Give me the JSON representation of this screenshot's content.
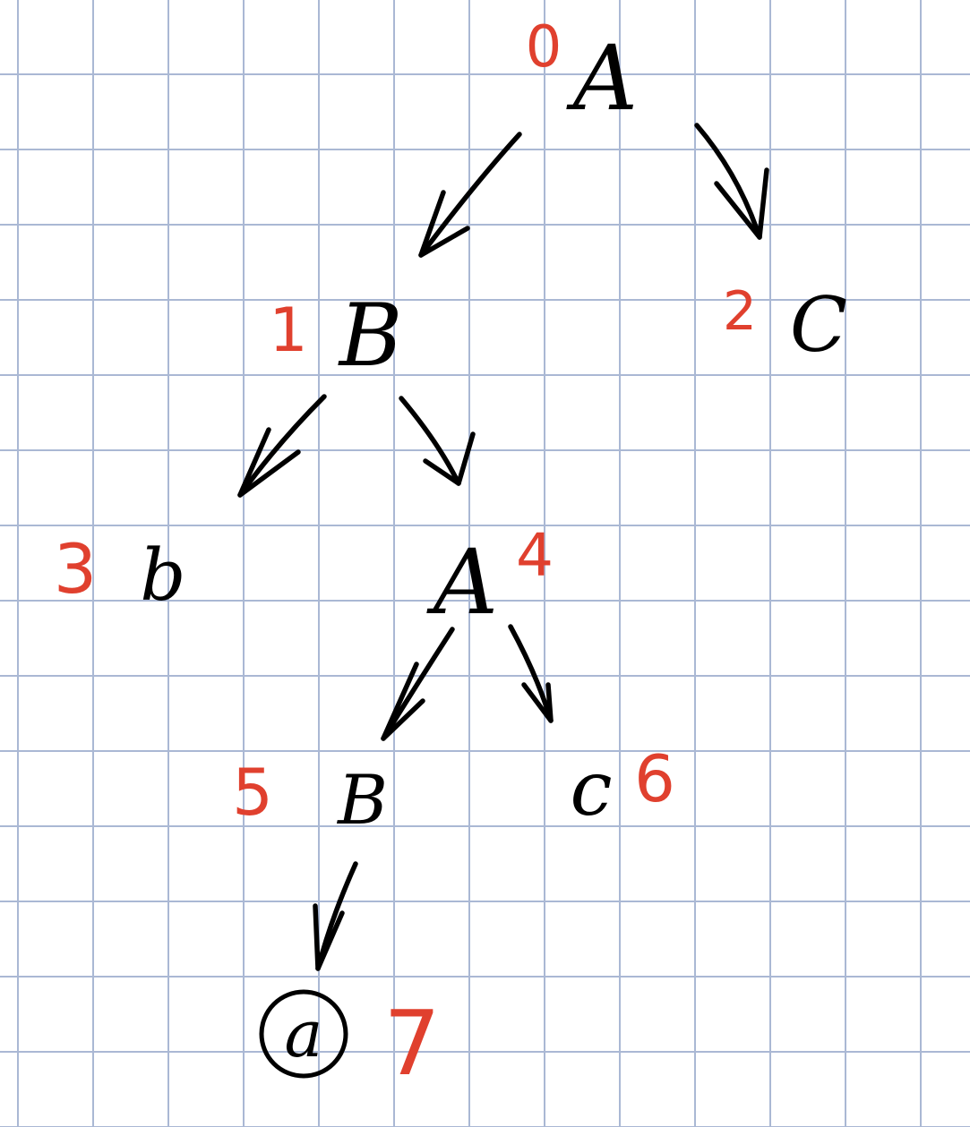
{
  "tree": {
    "nodes": [
      {
        "id": "n0",
        "label": "A",
        "order": "0"
      },
      {
        "id": "n1",
        "label": "B",
        "order": "1"
      },
      {
        "id": "n2",
        "label": "C",
        "order": "2"
      },
      {
        "id": "n3",
        "label": "b",
        "order": "3"
      },
      {
        "id": "n4",
        "label": "A",
        "order": "4"
      },
      {
        "id": "n5",
        "label": "B",
        "order": "5"
      },
      {
        "id": "n6",
        "label": "c",
        "order": "6"
      },
      {
        "id": "n7",
        "label": "a",
        "order": "7",
        "circled": true
      }
    ],
    "edges": [
      {
        "from": "n0",
        "to": "n1"
      },
      {
        "from": "n0",
        "to": "n2"
      },
      {
        "from": "n1",
        "to": "n3"
      },
      {
        "from": "n1",
        "to": "n4"
      },
      {
        "from": "n4",
        "to": "n5"
      },
      {
        "from": "n4",
        "to": "n6"
      },
      {
        "from": "n5",
        "to": "n7"
      }
    ]
  },
  "colors": {
    "ink": "#000000",
    "order_ink": "#e0402e",
    "grid": "#aab8d4",
    "paper": "#ffffff"
  }
}
